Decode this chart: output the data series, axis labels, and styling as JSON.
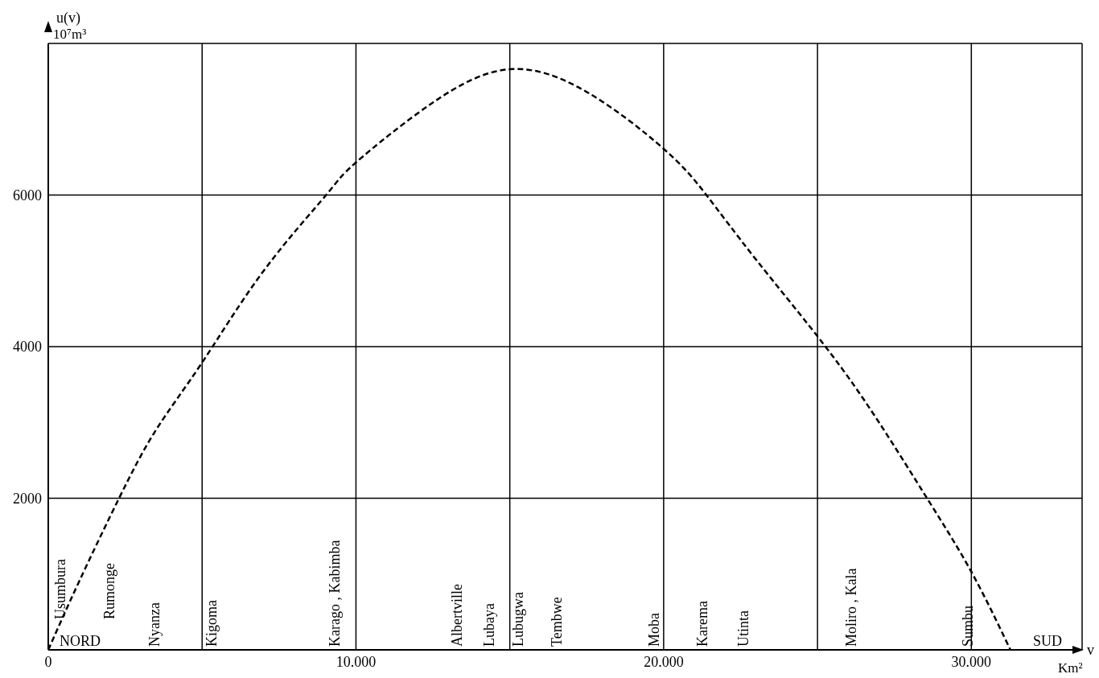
{
  "chart_data": {
    "type": "line",
    "xlabel": "v\nKm²",
    "ylabel": "u(v)\n10⁷m³",
    "x": [
      0,
      1000,
      2300,
      3500,
      5000,
      7000,
      9030,
      10000,
      12500,
      15000,
      17500,
      20000,
      21390,
      23000,
      25260,
      27000,
      28560,
      30000,
      31270
    ],
    "values": [
      0,
      900,
      2000,
      2900,
      3790,
      5000,
      6000,
      6430,
      7220,
      7660,
      7360,
      6610,
      6000,
      5150,
      4000,
      3000,
      2000,
      1030,
      0
    ],
    "color": "#000000",
    "line_style": "dashed",
    "marker": "none",
    "grid": true,
    "xlim": [
      0,
      33600
    ],
    "ylim": [
      0,
      8000
    ],
    "xticks": [
      0,
      {
        "value": 5000,
        "label": null
      },
      {
        "value": 10000,
        "label": "10.000"
      },
      {
        "value": 15000,
        "label": null
      },
      {
        "value": 20000,
        "label": "20.000"
      },
      {
        "value": 25000,
        "label": null
      },
      {
        "value": 30000,
        "label": "30.000"
      }
    ],
    "yticks": [
      {
        "value": 0,
        "label": null
      },
      2000,
      4000,
      6000,
      {
        "value": 8000,
        "label": null
      }
    ],
    "annotations": [
      "NORD",
      "SUD",
      "Usumbura",
      "Rumonge",
      "Nyanza",
      "Kigoma",
      "Karago , Kabimba",
      "Albertville",
      "Lubaya",
      "Lubugwa",
      "Tembwe",
      "Moba",
      "Karema",
      "Utinta",
      "Moliro , Kala",
      "Sumbu"
    ]
  }
}
